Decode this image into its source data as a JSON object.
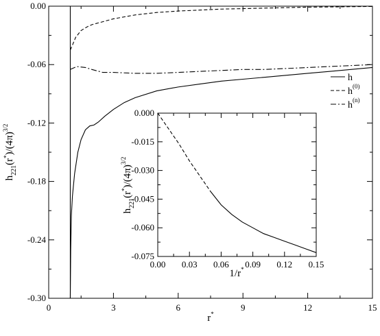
{
  "chart_data": [
    {
      "id": "main",
      "type": "line",
      "xlabel": "r",
      "xlabel_sup": "*",
      "ylabel": {
        "base": "h",
        "sub": "221",
        "mid": "(r",
        "star": "*",
        "tail": ")/(4π)",
        "pow": "3/2"
      },
      "xlim": [
        0,
        15
      ],
      "ylim": [
        -0.3,
        0.0
      ],
      "xticks": [
        0,
        3,
        6,
        9,
        12,
        15
      ],
      "xtick_labels": [
        "0",
        "3",
        "6",
        "9",
        "12",
        "15"
      ],
      "yticks": [
        -0.3,
        -0.24,
        -0.18,
        -0.12,
        -0.06,
        0.0
      ],
      "ytick_labels": [
        "-0.30",
        "-0.24",
        "-0.18",
        "-0.12",
        "-0.06",
        "0.00"
      ],
      "legend_position": "right",
      "grid": false,
      "series": [
        {
          "name": "h",
          "name_sup": "",
          "style": "solid",
          "points": [
            [
              1.0,
              -0.3
            ],
            [
              1.02,
              -0.25
            ],
            [
              1.05,
              -0.215
            ],
            [
              1.1,
              -0.195
            ],
            [
              1.2,
              -0.172
            ],
            [
              1.35,
              -0.15
            ],
            [
              1.5,
              -0.137
            ],
            [
              1.7,
              -0.127
            ],
            [
              1.9,
              -0.123
            ],
            [
              2.1,
              -0.122
            ],
            [
              2.3,
              -0.119
            ],
            [
              2.6,
              -0.113
            ],
            [
              3.0,
              -0.106
            ],
            [
              3.5,
              -0.099
            ],
            [
              4.0,
              -0.094
            ],
            [
              5.0,
              -0.087
            ],
            [
              6.0,
              -0.083
            ],
            [
              7.0,
              -0.08
            ],
            [
              8.0,
              -0.077
            ],
            [
              9.0,
              -0.075
            ],
            [
              10.0,
              -0.073
            ],
            [
              11.0,
              -0.071
            ],
            [
              12.0,
              -0.069
            ],
            [
              13.0,
              -0.067
            ],
            [
              14.0,
              -0.065
            ],
            [
              15.0,
              -0.063
            ]
          ]
        },
        {
          "name": "h",
          "name_sup": "(0)",
          "style": "dashed",
          "points": [
            [
              1.0,
              -0.045
            ],
            [
              1.1,
              -0.04
            ],
            [
              1.25,
              -0.032
            ],
            [
              1.5,
              -0.025
            ],
            [
              1.8,
              -0.021
            ],
            [
              2.0,
              -0.019
            ],
            [
              2.5,
              -0.016
            ],
            [
              3.0,
              -0.013
            ],
            [
              3.5,
              -0.011
            ],
            [
              4.0,
              -0.009
            ],
            [
              5.0,
              -0.0065
            ],
            [
              6.0,
              -0.005
            ],
            [
              7.0,
              -0.004
            ],
            [
              8.0,
              -0.003
            ],
            [
              9.0,
              -0.0025
            ],
            [
              10.0,
              -0.002
            ],
            [
              11.0,
              -0.0015
            ],
            [
              12.0,
              -0.001
            ],
            [
              13.0,
              -0.0008
            ],
            [
              14.0,
              -0.0005
            ],
            [
              15.0,
              -0.0003
            ]
          ]
        },
        {
          "name": "h",
          "name_sup": "(n)",
          "style": "dashdot",
          "points": [
            [
              1.0,
              -0.065
            ],
            [
              1.3,
              -0.062
            ],
            [
              1.7,
              -0.063
            ],
            [
              2.0,
              -0.065
            ],
            [
              2.5,
              -0.068
            ],
            [
              3.0,
              -0.068
            ],
            [
              4.0,
              -0.069
            ],
            [
              5.0,
              -0.069
            ],
            [
              6.0,
              -0.068
            ],
            [
              7.0,
              -0.067
            ],
            [
              8.0,
              -0.066
            ],
            [
              9.0,
              -0.065
            ],
            [
              10.0,
              -0.065
            ],
            [
              11.0,
              -0.064
            ],
            [
              12.0,
              -0.063
            ],
            [
              13.0,
              -0.062
            ],
            [
              14.0,
              -0.061
            ],
            [
              15.0,
              -0.06
            ]
          ]
        }
      ]
    },
    {
      "id": "inset",
      "type": "line",
      "xlabel": "1/r",
      "xlabel_sup": "*",
      "ylabel": {
        "base": "h",
        "sub": "221",
        "mid": "(r",
        "star": "*",
        "tail": ")/(4π)",
        "pow": "3/2"
      },
      "xlim": [
        0.0,
        0.15
      ],
      "ylim": [
        -0.075,
        0.0
      ],
      "xticks": [
        0.0,
        0.03,
        0.06,
        0.09,
        0.12,
        0.15
      ],
      "xtick_labels": [
        "0.00",
        "0.03",
        "0.06",
        "0.09",
        "0.12",
        "0.15"
      ],
      "yticks": [
        -0.075,
        -0.06,
        -0.045,
        -0.03,
        -0.015,
        0.0
      ],
      "ytick_labels": [
        "-0.075",
        "-0.060",
        "-0.045",
        "-0.030",
        "-0.015",
        "0.000"
      ],
      "grid": false,
      "series": [
        {
          "style": "dashed",
          "points": [
            [
              0.0,
              0.0
            ],
            [
              0.01,
              -0.008
            ],
            [
              0.02,
              -0.016
            ],
            [
              0.03,
              -0.025
            ],
            [
              0.04,
              -0.033
            ],
            [
              0.05,
              -0.041
            ]
          ]
        },
        {
          "style": "solid",
          "points": [
            [
              0.05,
              -0.041
            ],
            [
              0.06,
              -0.048
            ],
            [
              0.07,
              -0.053
            ],
            [
              0.08,
              -0.057
            ],
            [
              0.09,
              -0.06
            ],
            [
              0.1,
              -0.063
            ],
            [
              0.11,
              -0.065
            ],
            [
              0.12,
              -0.067
            ],
            [
              0.13,
              -0.069
            ],
            [
              0.14,
              -0.071
            ],
            [
              0.15,
              -0.073
            ]
          ]
        }
      ]
    }
  ]
}
